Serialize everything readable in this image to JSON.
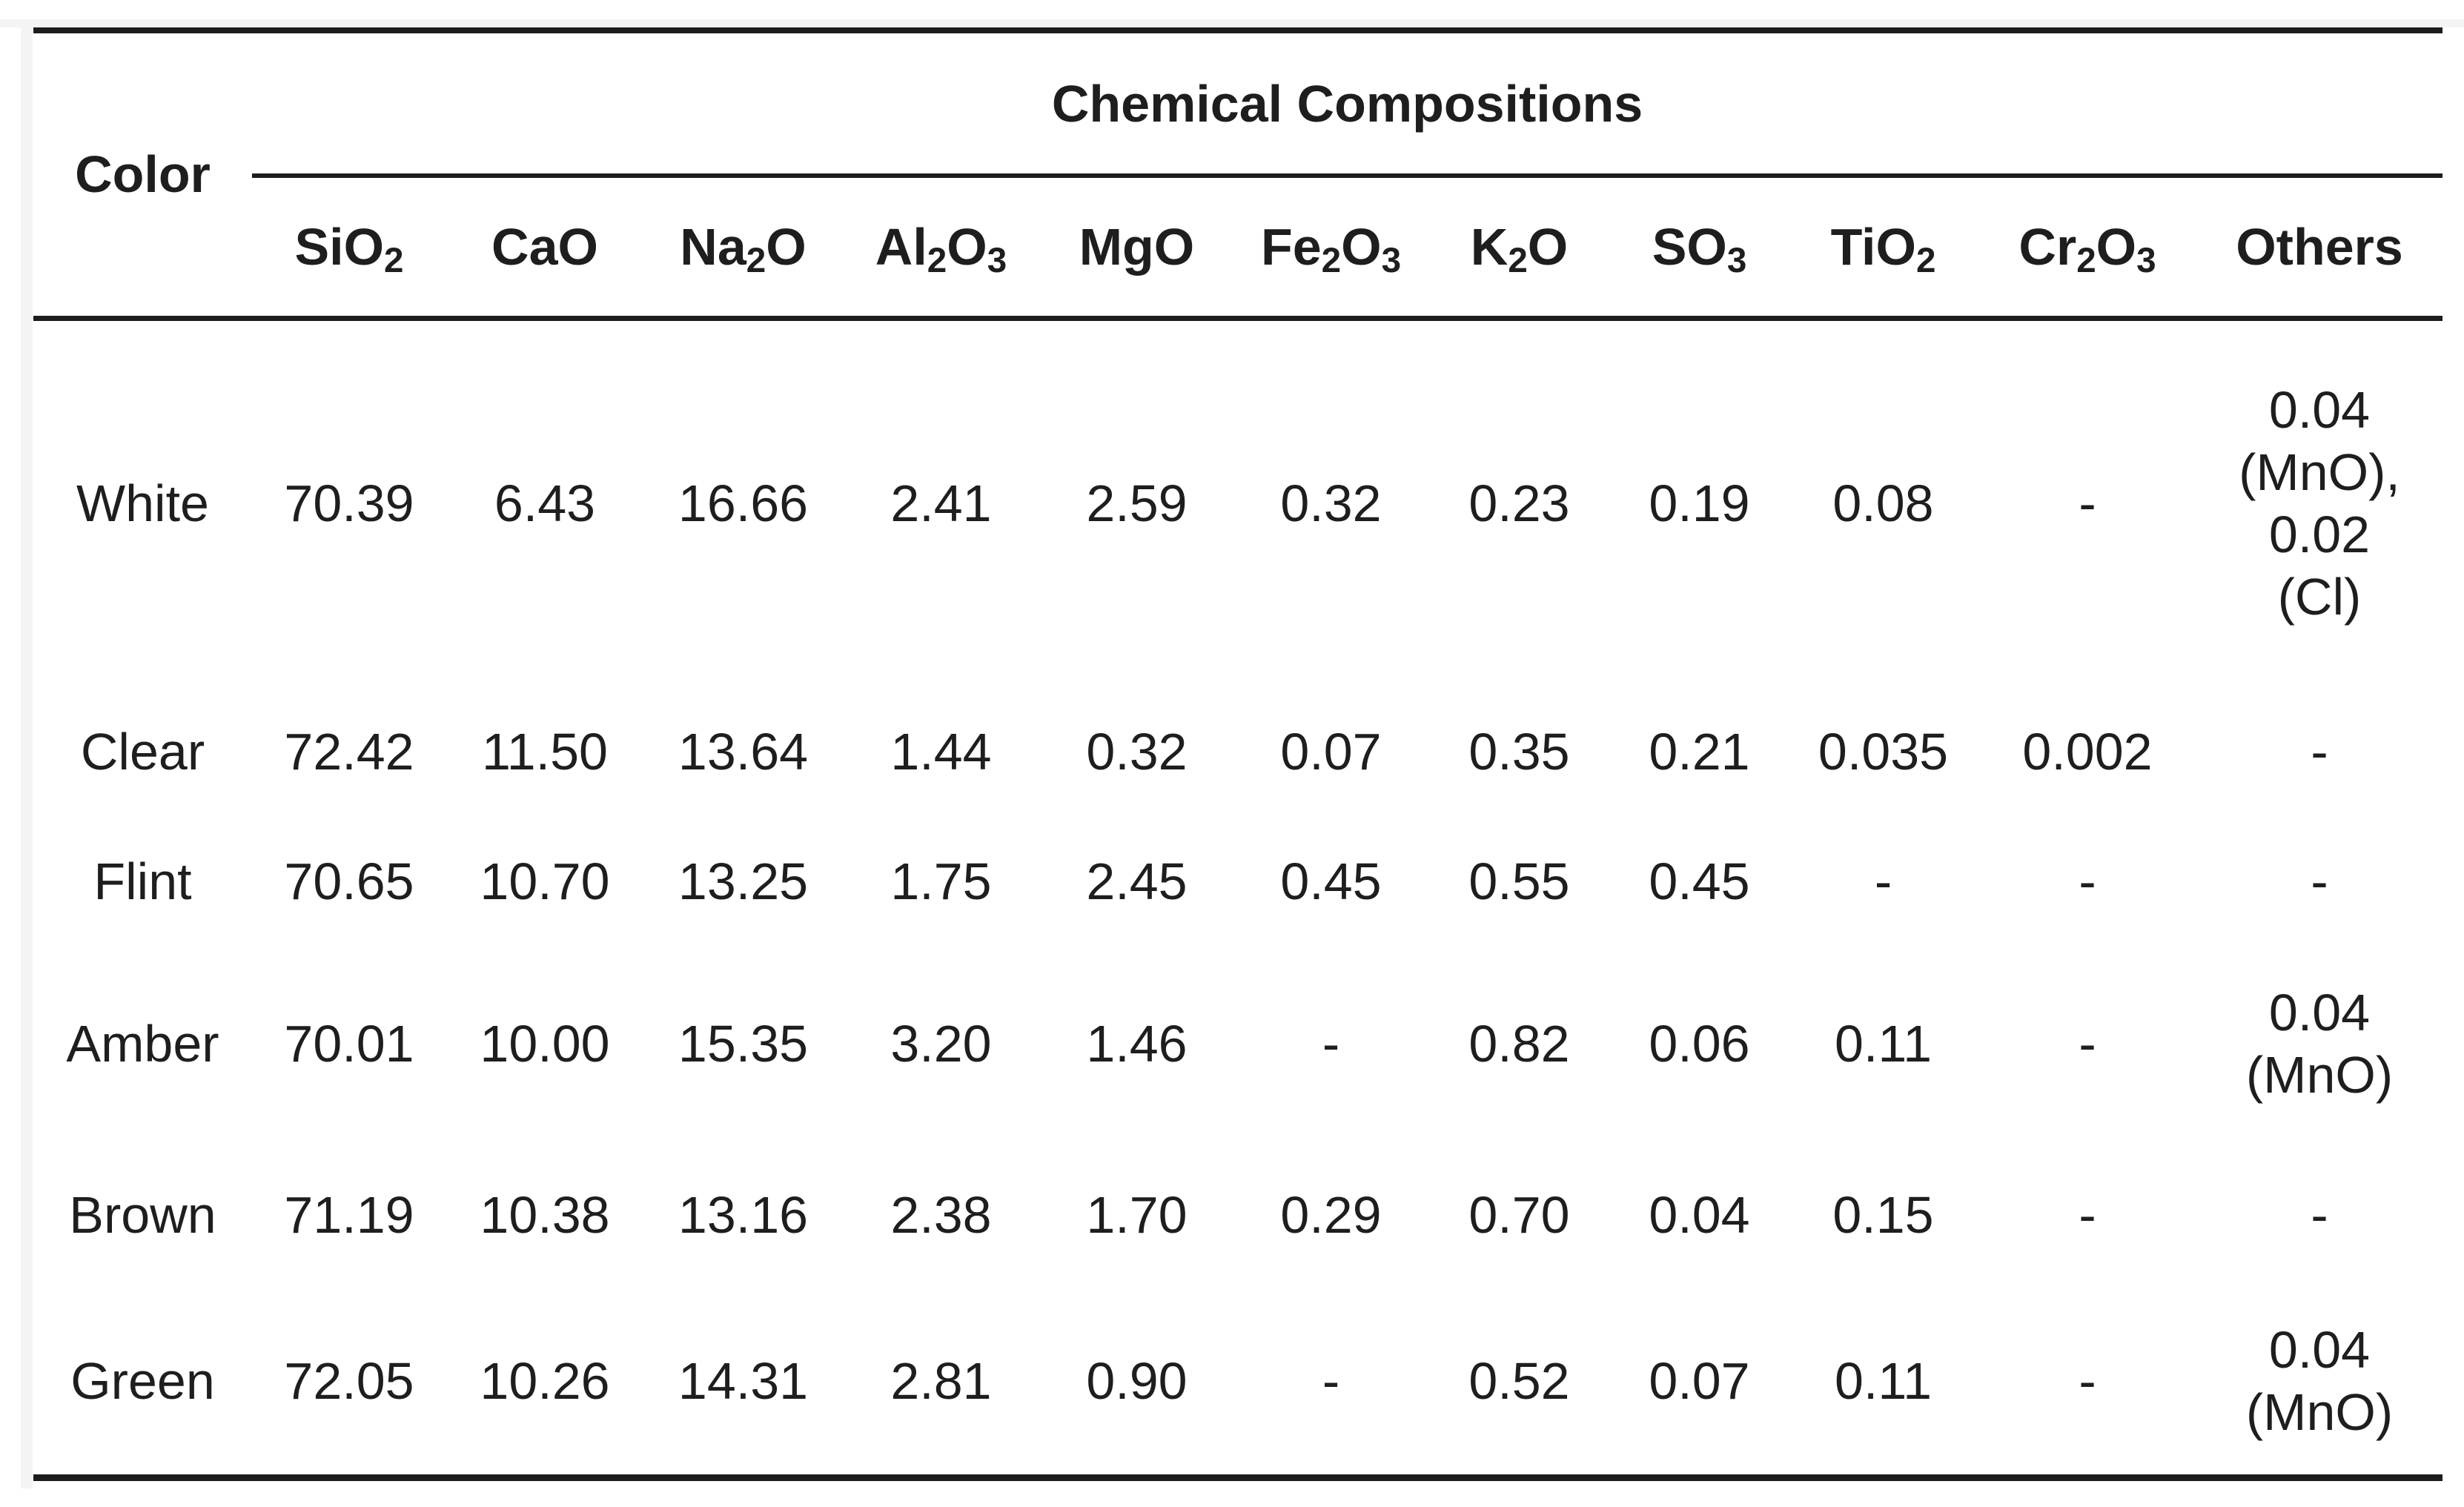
{
  "page": {
    "background": "#ffffff",
    "margin_tint": "#f4f4f4"
  },
  "table": {
    "border_color": "#1d1d1d",
    "text_color": "#1e1e1e",
    "corner_header": "Color",
    "group_header": "Chemical Compositions",
    "columns": [
      "SiO_2",
      "CaO",
      "Na_2O",
      "Al_2O_3",
      "MgO",
      "Fe_2O_3",
      "K_2O",
      "SO_3",
      "TiO_2",
      "Cr_2O_3",
      "Others"
    ],
    "rows": [
      {
        "color": "White",
        "values": [
          "70.39",
          "6.43",
          "16.66",
          "2.41",
          "2.59",
          "0.32",
          "0.23",
          "0.19",
          "0.08",
          "-",
          "0.04 (MnO), 0.02 (Cl)"
        ]
      },
      {
        "color": "Clear",
        "values": [
          "72.42",
          "11.50",
          "13.64",
          "1.44",
          "0.32",
          "0.07",
          "0.35",
          "0.21",
          "0.035",
          "0.002",
          "-"
        ]
      },
      {
        "color": "Flint",
        "values": [
          "70.65",
          "10.70",
          "13.25",
          "1.75",
          "2.45",
          "0.45",
          "0.55",
          "0.45",
          "-",
          "-",
          "-"
        ]
      },
      {
        "color": "Amber",
        "values": [
          "70.01",
          "10.00",
          "15.35",
          "3.20",
          "1.46",
          "-",
          "0.82",
          "0.06",
          "0.11",
          "-",
          "0.04 (MnO)"
        ]
      },
      {
        "color": "Brown",
        "values": [
          "71.19",
          "10.38",
          "13.16",
          "2.38",
          "1.70",
          "0.29",
          "0.70",
          "0.04",
          "0.15",
          "-",
          "-"
        ]
      },
      {
        "color": "Green",
        "values": [
          "72.05",
          "10.26",
          "14.31",
          "2.81",
          "0.90",
          "-",
          "0.52",
          "0.07",
          "0.11",
          "-",
          "0.04 (MnO)"
        ]
      }
    ]
  }
}
